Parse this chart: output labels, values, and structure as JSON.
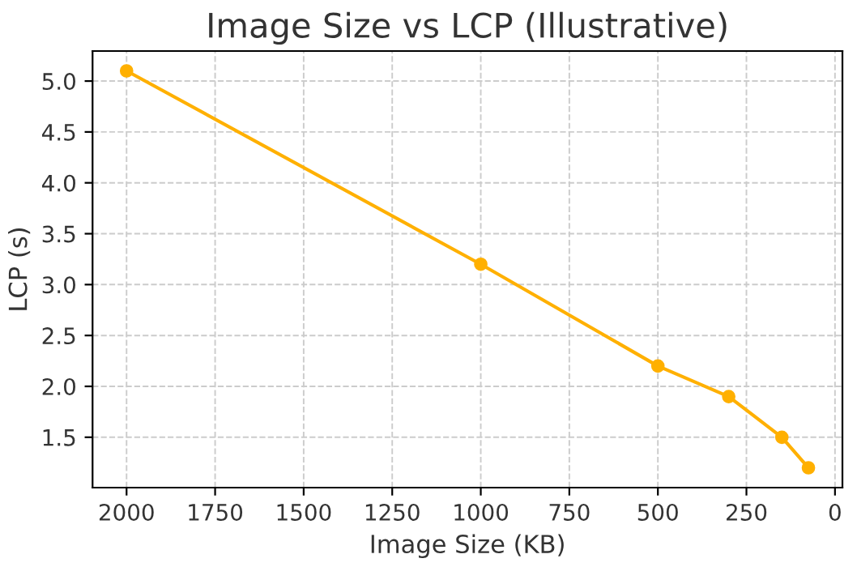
{
  "chart_data": {
    "type": "line",
    "title": "Image Size vs LCP (Illustrative)",
    "xlabel": "Image Size (KB)",
    "ylabel": "LCP (s)",
    "x": [
      2000,
      1000,
      500,
      300,
      150,
      75
    ],
    "series": [
      {
        "color": "#ffb000",
        "values": [
          5.1,
          3.2,
          2.2,
          1.9,
          1.5,
          1.2
        ]
      }
    ],
    "xlim": [
      2096,
      -21
    ],
    "xticks": [
      2000,
      1750,
      1500,
      1250,
      1000,
      750,
      500,
      250,
      0
    ],
    "ylim": [
      1.005,
      5.295
    ],
    "yticks": [
      {
        "value": 1.5,
        "label": "1.5"
      },
      {
        "value": 2.0,
        "label": "2.0"
      },
      {
        "value": 2.5,
        "label": "2.5"
      },
      {
        "value": 3.0,
        "label": "3.0"
      },
      {
        "value": 3.5,
        "label": "3.5"
      },
      {
        "value": 4.0,
        "label": "4.0"
      },
      {
        "value": 4.5,
        "label": "4.5"
      },
      {
        "value": 5.0,
        "label": "5.0"
      }
    ],
    "grid": true,
    "marker": "circle",
    "line_style": "solid"
  }
}
